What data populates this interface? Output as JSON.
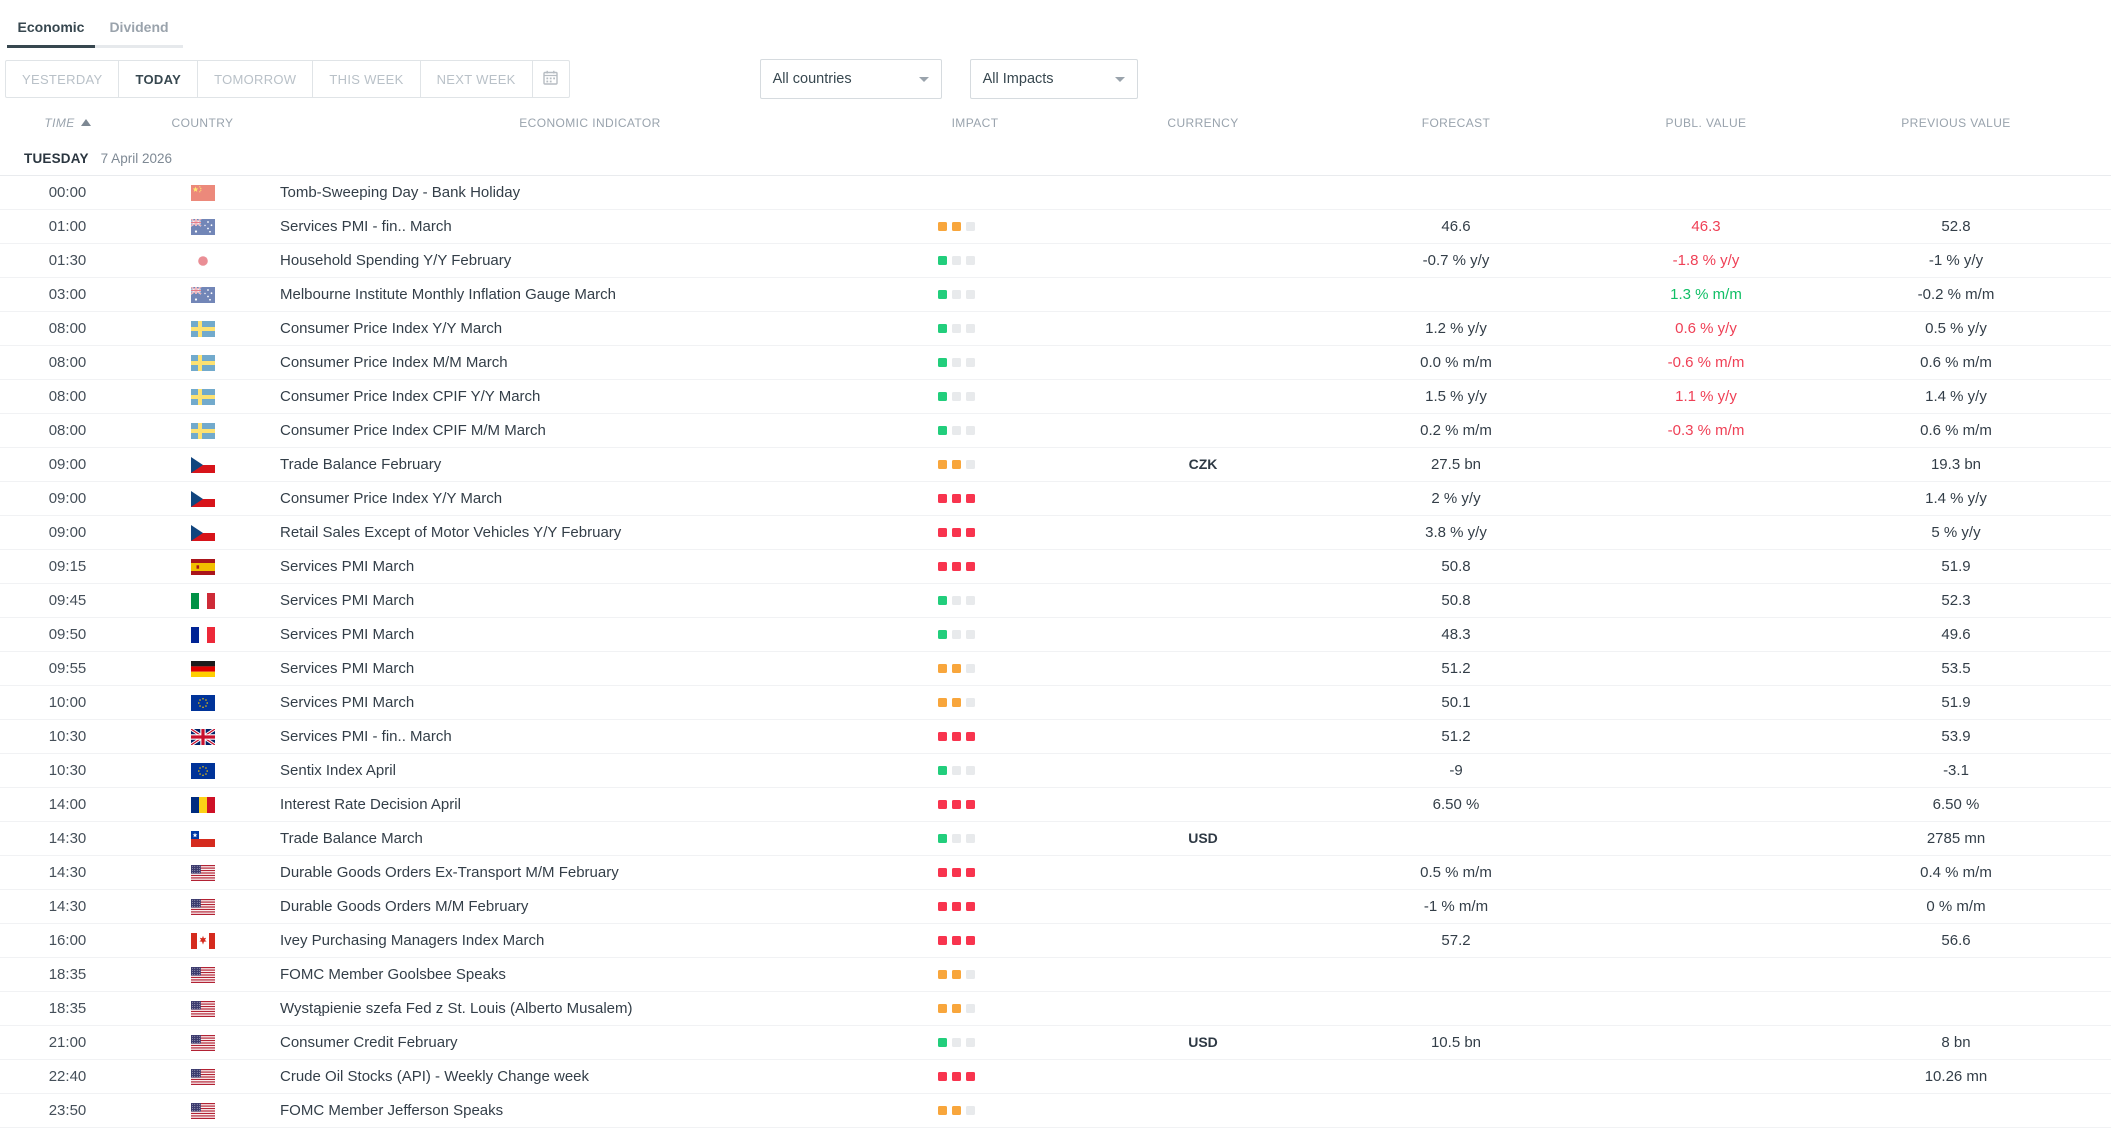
{
  "tabs": [
    {
      "label": "Economic",
      "active": true
    },
    {
      "label": "Dividend",
      "active": false
    }
  ],
  "filters": {
    "range_buttons": [
      {
        "label": "YESTERDAY",
        "active": false
      },
      {
        "label": "TODAY",
        "active": true
      },
      {
        "label": "TOMORROW",
        "active": false
      },
      {
        "label": "THIS WEEK",
        "active": false
      },
      {
        "label": "NEXT WEEK",
        "active": false
      }
    ],
    "calendar_button_icon": "calendar-icon",
    "country_filter": {
      "value": "All countries"
    },
    "impact_filter": {
      "value": "All Impacts"
    }
  },
  "table": {
    "columns": [
      "TIME",
      "COUNTRY",
      "ECONOMIC INDICATOR",
      "IMPACT",
      "CURRENCY",
      "FORECAST",
      "PUBL. VALUE",
      "PREVIOUS VALUE"
    ],
    "sort": {
      "column": "TIME",
      "direction": "ascending",
      "icon": "sort-ascending-icon"
    },
    "day_header": {
      "day": "TUESDAY",
      "date": "7 April 2026"
    },
    "rows": [
      {
        "time": "00:00",
        "country": "China",
        "country_code": "cn",
        "indicator": "Tomb-Sweeping Day - Bank Holiday",
        "impact": null,
        "currency": "",
        "forecast": "",
        "publ_value": "",
        "publ_trend": "",
        "previous_value": "",
        "released": true
      },
      {
        "time": "01:00",
        "country": "Australia",
        "country_code": "au",
        "indicator": "Services PMI - fin.. March",
        "impact": "medium",
        "currency": "",
        "forecast": "46.6",
        "publ_value": "46.3",
        "publ_trend": "worse",
        "previous_value": "52.8",
        "released": true
      },
      {
        "time": "01:30",
        "country": "Japan",
        "country_code": "jp",
        "indicator": "Household Spending Y/Y February",
        "impact": "low",
        "currency": "",
        "forecast": "-0.7 % y/y",
        "publ_value": "-1.8 % y/y",
        "publ_trend": "worse",
        "previous_value": "-1 % y/y",
        "released": true
      },
      {
        "time": "03:00",
        "country": "Australia",
        "country_code": "au",
        "indicator": "Melbourne Institute Monthly Inflation Gauge March",
        "impact": "low",
        "currency": "",
        "forecast": "",
        "publ_value": "1.3 % m/m",
        "publ_trend": "better",
        "previous_value": "-0.2 % m/m",
        "released": true
      },
      {
        "time": "08:00",
        "country": "Sweden",
        "country_code": "se",
        "indicator": "Consumer Price Index Y/Y March",
        "impact": "low",
        "currency": "",
        "forecast": "1.2 % y/y",
        "publ_value": "0.6 % y/y",
        "publ_trend": "worse",
        "previous_value": "0.5 % y/y",
        "released": true
      },
      {
        "time": "08:00",
        "country": "Sweden",
        "country_code": "se",
        "indicator": "Consumer Price Index M/M March",
        "impact": "low",
        "currency": "",
        "forecast": "0.0 % m/m",
        "publ_value": "-0.6 % m/m",
        "publ_trend": "worse",
        "previous_value": "0.6 % m/m",
        "released": true
      },
      {
        "time": "08:00",
        "country": "Sweden",
        "country_code": "se",
        "indicator": "Consumer Price Index CPIF Y/Y March",
        "impact": "low",
        "currency": "",
        "forecast": "1.5 % y/y",
        "publ_value": "1.1 % y/y",
        "publ_trend": "worse",
        "previous_value": "1.4 % y/y",
        "released": true
      },
      {
        "time": "08:00",
        "country": "Sweden",
        "country_code": "se",
        "indicator": "Consumer Price Index CPIF M/M March",
        "impact": "low",
        "currency": "",
        "forecast": "0.2 % m/m",
        "publ_value": "-0.3 % m/m",
        "publ_trend": "worse",
        "previous_value": "0.6 % m/m",
        "released": true
      },
      {
        "time": "09:00",
        "country": "Czech Republic",
        "country_code": "cz",
        "indicator": "Trade Balance February",
        "impact": "medium",
        "currency": "CZK",
        "forecast": "27.5 bn",
        "publ_value": "",
        "publ_trend": "",
        "previous_value": "19.3 bn",
        "released": false
      },
      {
        "time": "09:00",
        "country": "Czech Republic",
        "country_code": "cz",
        "indicator": "Consumer Price Index Y/Y March",
        "impact": "high",
        "currency": "",
        "forecast": "2 % y/y",
        "publ_value": "",
        "publ_trend": "",
        "previous_value": "1.4 % y/y",
        "released": false
      },
      {
        "time": "09:00",
        "country": "Czech Republic",
        "country_code": "cz",
        "indicator": "Retail Sales Except of Motor Vehicles Y/Y February",
        "impact": "high",
        "currency": "",
        "forecast": "3.8 % y/y",
        "publ_value": "",
        "publ_trend": "",
        "previous_value": "5 % y/y",
        "released": false
      },
      {
        "time": "09:15",
        "country": "Spain",
        "country_code": "es",
        "indicator": "Services PMI March",
        "impact": "high",
        "currency": "",
        "forecast": "50.8",
        "publ_value": "",
        "publ_trend": "",
        "previous_value": "51.9",
        "released": false
      },
      {
        "time": "09:45",
        "country": "Italy",
        "country_code": "it",
        "indicator": "Services PMI March",
        "impact": "low",
        "currency": "",
        "forecast": "50.8",
        "publ_value": "",
        "publ_trend": "",
        "previous_value": "52.3",
        "released": false
      },
      {
        "time": "09:50",
        "country": "France",
        "country_code": "fr",
        "indicator": "Services PMI March",
        "impact": "low",
        "currency": "",
        "forecast": "48.3",
        "publ_value": "",
        "publ_trend": "",
        "previous_value": "49.6",
        "released": false
      },
      {
        "time": "09:55",
        "country": "Germany",
        "country_code": "de",
        "indicator": "Services PMI March",
        "impact": "medium",
        "currency": "",
        "forecast": "51.2",
        "publ_value": "",
        "publ_trend": "",
        "previous_value": "53.5",
        "released": false
      },
      {
        "time": "10:00",
        "country": "European Union",
        "country_code": "eu",
        "indicator": "Services PMI March",
        "impact": "medium",
        "currency": "",
        "forecast": "50.1",
        "publ_value": "",
        "publ_trend": "",
        "previous_value": "51.9",
        "released": false
      },
      {
        "time": "10:30",
        "country": "United Kingdom",
        "country_code": "gb",
        "indicator": "Services PMI - fin.. March",
        "impact": "high",
        "currency": "",
        "forecast": "51.2",
        "publ_value": "",
        "publ_trend": "",
        "previous_value": "53.9",
        "released": false
      },
      {
        "time": "10:30",
        "country": "European Union",
        "country_code": "eu",
        "indicator": "Sentix Index April",
        "impact": "low",
        "currency": "",
        "forecast": "-9",
        "publ_value": "",
        "publ_trend": "",
        "previous_value": "-3.1",
        "released": false
      },
      {
        "time": "14:00",
        "country": "Romania",
        "country_code": "ro",
        "indicator": "Interest Rate Decision April",
        "impact": "high",
        "currency": "",
        "forecast": "6.50 %",
        "publ_value": "",
        "publ_trend": "",
        "previous_value": "6.50 %",
        "released": false
      },
      {
        "time": "14:30",
        "country": "Chile",
        "country_code": "cl",
        "indicator": "Trade Balance March",
        "impact": "low",
        "currency": "USD",
        "forecast": "",
        "publ_value": "",
        "publ_trend": "",
        "previous_value": "2785 mn",
        "released": false
      },
      {
        "time": "14:30",
        "country": "United States",
        "country_code": "us",
        "indicator": "Durable Goods Orders Ex-Transport M/M February",
        "impact": "high",
        "currency": "",
        "forecast": "0.5 % m/m",
        "publ_value": "",
        "publ_trend": "",
        "previous_value": "0.4 % m/m",
        "released": false
      },
      {
        "time": "14:30",
        "country": "United States",
        "country_code": "us",
        "indicator": "Durable Goods Orders M/M February",
        "impact": "high",
        "currency": "",
        "forecast": "-1 % m/m",
        "publ_value": "",
        "publ_trend": "",
        "previous_value": "0 % m/m",
        "released": false
      },
      {
        "time": "16:00",
        "country": "Canada",
        "country_code": "ca",
        "indicator": "Ivey Purchasing Managers Index March",
        "impact": "high",
        "currency": "",
        "forecast": "57.2",
        "publ_value": "",
        "publ_trend": "",
        "previous_value": "56.6",
        "released": false
      },
      {
        "time": "18:35",
        "country": "United States",
        "country_code": "us",
        "indicator": "FOMC Member Goolsbee Speaks",
        "impact": "medium",
        "currency": "",
        "forecast": "",
        "publ_value": "",
        "publ_trend": "",
        "previous_value": "",
        "released": false
      },
      {
        "time": "18:35",
        "country": "United States",
        "country_code": "us",
        "indicator": "Wystąpienie szefa Fed z St. Louis (Alberto Musalem)",
        "impact": "medium",
        "currency": "",
        "forecast": "",
        "publ_value": "",
        "publ_trend": "",
        "previous_value": "",
        "released": false
      },
      {
        "time": "21:00",
        "country": "United States",
        "country_code": "us",
        "indicator": "Consumer Credit February",
        "impact": "low",
        "currency": "USD",
        "forecast": "10.5 bn",
        "publ_value": "",
        "publ_trend": "",
        "previous_value": "8 bn",
        "released": false
      },
      {
        "time": "22:40",
        "country": "United States",
        "country_code": "us",
        "indicator": "Crude Oil Stocks (API) - Weekly Change week",
        "impact": "high",
        "currency": "",
        "forecast": "",
        "publ_value": "",
        "publ_trend": "",
        "previous_value": "10.26 mn",
        "released": false
      },
      {
        "time": "23:50",
        "country": "United States",
        "country_code": "us",
        "indicator": "FOMC Member Jefferson Speaks",
        "impact": "medium",
        "currency": "",
        "forecast": "",
        "publ_value": "",
        "publ_trend": "",
        "previous_value": "",
        "released": false
      }
    ]
  },
  "colors": {
    "accent_dark": "#37474f",
    "impact_low": "#22ce7c",
    "impact_medium": "#f8a63c",
    "impact_high": "#f8344e",
    "impact_empty": "#e8eaec",
    "value_better": "#10bf66",
    "value_worse": "#ef4056"
  }
}
